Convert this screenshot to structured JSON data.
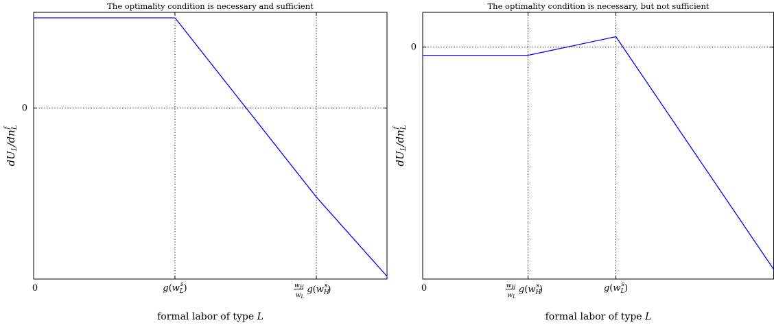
{
  "chart_data": [
    {
      "type": "line",
      "title": "The optimality condition is necessary and sufficient",
      "xlabel": "formal labor of type L",
      "ylabel": "dU_L/dn_L^f",
      "x_ticks": [
        {
          "x": 0,
          "label": "0"
        },
        {
          "x": 0.4,
          "label": "g(w_L^s)"
        },
        {
          "x": 0.8,
          "label": "(w_H^f/w_L^f) g(w_H^s)"
        }
      ],
      "y_ticks": [
        {
          "y": 0,
          "label": "0"
        }
      ],
      "xlim": [
        0,
        1
      ],
      "ylim": [
        -1.25,
        0.7
      ],
      "grid": "dotted guides at ticks",
      "series": [
        {
          "color": "#0000ff",
          "points": [
            [
              0,
              0.66
            ],
            [
              0.4,
              0.66
            ],
            [
              0.8,
              -0.65
            ],
            [
              1,
              -1.23
            ]
          ]
        }
      ]
    },
    {
      "type": "line",
      "title": "The optimality condition is necessary, but not sufficient",
      "xlabel": "formal labor of type L",
      "ylabel": "dU_L/dn_L^f",
      "x_ticks": [
        {
          "x": 0,
          "label": "0"
        },
        {
          "x": 0.3,
          "label": "(w_H^f/w_L^f) g(w_H^s)"
        },
        {
          "x": 0.55,
          "label": "g(w_L^s)"
        }
      ],
      "y_ticks": [
        {
          "y": 0,
          "label": "0"
        }
      ],
      "xlim": [
        0,
        1
      ],
      "ylim": [
        -1.0,
        0.15
      ],
      "grid": "dotted guides at ticks",
      "series": [
        {
          "color": "#0000ff",
          "points": [
            [
              0,
              -0.035
            ],
            [
              0.3,
              -0.035
            ],
            [
              0.55,
              0.045
            ],
            [
              1,
              -0.96
            ]
          ]
        }
      ]
    }
  ]
}
